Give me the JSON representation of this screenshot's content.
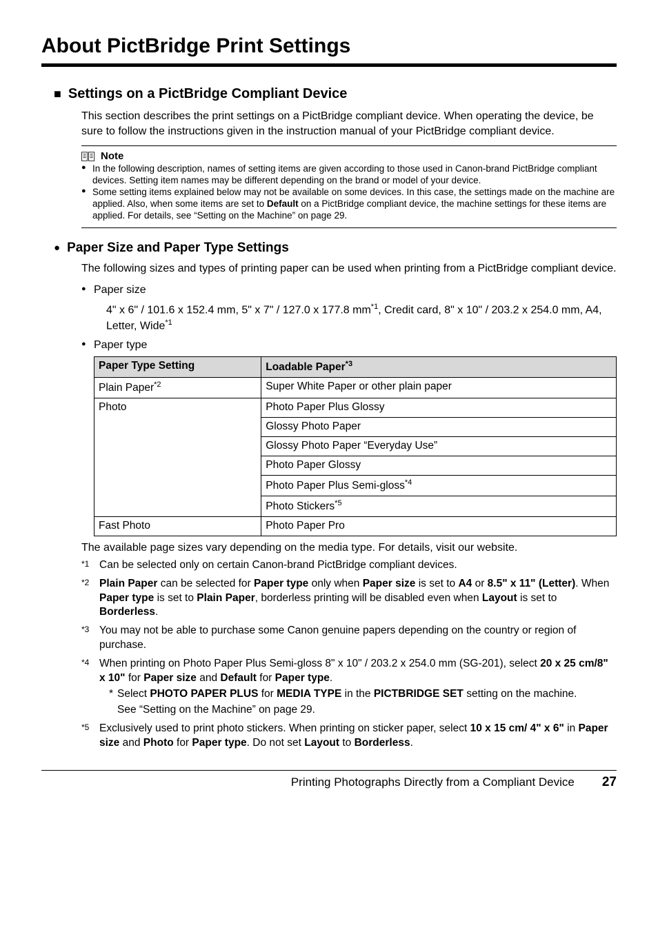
{
  "title": "About PictBridge Print Settings",
  "section1": {
    "heading": "Settings on a PictBridge Compliant Device",
    "intro": "This section describes the print settings on a PictBridge compliant device. When operating the device, be sure to follow the instructions given in the instruction manual of your PictBridge compliant device."
  },
  "note": {
    "label": "Note",
    "items": [
      "In the following description, names of setting items are given according to those used in Canon-brand PictBridge compliant devices. Setting item names may be different depending on the brand or model of your device.",
      "Some setting items explained below may not be available on some devices. In this case, the settings made on the machine are applied. Also, when some items are set to <b>Default</b> on a PictBridge compliant device, the machine settings for these items are applied. For details, see “Setting on the Machine” on page 29."
    ]
  },
  "section2": {
    "heading": "Paper Size and Paper Type Settings",
    "intro": "The following sizes and types of printing paper can be used when printing from a PictBridge compliant device.",
    "bullets": {
      "papersize_label": "Paper size",
      "papersize_text": "4\" x 6\" / 101.6 x 152.4 mm, 5\" x 7\" / 127.0 x 177.8 mm<span class=\"superscript\">*1</span>, Credit card, 8\" x 10\" / 203.2 x 254.0 mm, A4, Letter, Wide<span class=\"superscript\">*1</span>",
      "papertype_label": "Paper type"
    }
  },
  "table": {
    "col1_header": "Paper Type Setting",
    "col2_header": "Loadable Paper",
    "col2_header_sup": "*3",
    "rows": [
      {
        "c1": "Plain Paper",
        "c1_sup": "*2",
        "c2": "Super White Paper or other plain paper"
      },
      {
        "c1": "Photo",
        "c2": "Photo Paper Plus Glossy",
        "rowspan": 6
      },
      {
        "c2": "Glossy Photo Paper"
      },
      {
        "c2": "Glossy Photo Paper “Everyday Use”"
      },
      {
        "c2": "Photo Paper Glossy"
      },
      {
        "c2": "Photo Paper Plus Semi-gloss",
        "c2_sup": "*4"
      },
      {
        "c2": "Photo Stickers",
        "c2_sup": "*5"
      },
      {
        "c1": "Fast Photo",
        "c2": "Photo Paper Pro"
      }
    ],
    "col1_width": "32%"
  },
  "aftertable": "The available page sizes vary depending on the media type. For details, visit our website.",
  "footnotes": [
    {
      "mark": "*1",
      "html": "Can be selected only on certain Canon-brand PictBridge compliant devices."
    },
    {
      "mark": "*2",
      "html": "<b>Plain Paper</b> can be selected for <b>Paper type</b> only when <b>Paper size</b> is set to <b>A4</b> or <b>8.5\" x 11\" (Letter)</b>. When <b>Paper type</b> is set to <b>Plain Paper</b>, borderless printing will be disabled even when <b>Layout</b> is set to <b>Borderless</b>."
    },
    {
      "mark": "*3",
      "html": "You may not be able to purchase some Canon genuine papers depending on the country or region of purchase."
    },
    {
      "mark": "*4",
      "html": "When printing on Photo Paper Plus Semi-gloss 8\" x 10\" / 203.2 x 254.0 mm (SG-201), select <b>20 x 25 cm/8\" x 10\"</b> for <b>Paper size</b> and <b>Default</b> for <b>Paper type</b>.",
      "sub": "Select <b>PHOTO PAPER PLUS</b> for <b>MEDIA TYPE</b> in the <b>PICTBRIDGE SET</b> setting on the machine.",
      "sub2": "See “Setting on the Machine” on page 29."
    },
    {
      "mark": "*5",
      "html": "Exclusively used to print photo stickers. When printing on sticker paper, select <b>10 x 15 cm/ 4\" x 6\"</b> in <b>Paper size</b> and <b>Photo</b> for <b>Paper type</b>. Do not set <b>Layout</b> to <b>Borderless</b>."
    }
  ],
  "footer": {
    "text": "Printing Photographs Directly from a Compliant Device",
    "page": "27"
  },
  "colors": {
    "table_header_bg": "#d8d8d8",
    "rule": "#000000"
  }
}
